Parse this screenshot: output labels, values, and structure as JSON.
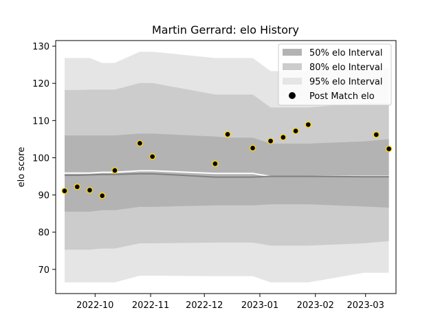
{
  "chart_data": {
    "type": "line",
    "title": "Martin Gerrard: elo History",
    "xlabel": "",
    "ylabel": "elo score",
    "ylim": [
      63.5,
      131.5
    ],
    "xlim": [
      "2022-09-09",
      "2023-03-18"
    ],
    "grid": false,
    "legend_position": "top-right",
    "y_ticks": [
      70,
      80,
      90,
      100,
      110,
      120,
      130
    ],
    "x_ticks": [
      "2022-10",
      "2022-11",
      "2022-12",
      "2023-01",
      "2023-02",
      "2023-03"
    ],
    "x_tick_dates": [
      "2022-10-01",
      "2022-11-01",
      "2022-12-01",
      "2023-01-01",
      "2023-02-01",
      "2023-03-01"
    ],
    "colors": {
      "band50": "#b3b3b3",
      "band80": "#cccccc",
      "band95": "#e5e5e5",
      "mean_line": "#808080",
      "median_line": "#ffffff",
      "point_fill": "#000000",
      "point_edge": "#ffd700"
    },
    "bands": {
      "dates": [
        "2022-09-14",
        "2022-09-21",
        "2022-09-28",
        "2022-10-05",
        "2022-10-12",
        "2022-10-26",
        "2022-11-02",
        "2022-12-07",
        "2022-12-14",
        "2022-12-28",
        "2023-01-07",
        "2023-01-28",
        "2023-02-28",
        "2023-03-14"
      ],
      "p95_upper": [
        126.8,
        126.8,
        126.8,
        125.5,
        125.5,
        128.5,
        128.5,
        126.8,
        126.8,
        126.8,
        123.3,
        123.3,
        124.0,
        124.0
      ],
      "p80_upper": [
        118.2,
        118.2,
        118.3,
        118.3,
        118.3,
        120.1,
        120.1,
        117.0,
        117.0,
        117.0,
        113.5,
        113.5,
        114.7,
        114.7
      ],
      "p50_upper": [
        106.0,
        106.0,
        106.0,
        106.0,
        106.0,
        106.5,
        106.5,
        105.7,
        105.4,
        105.4,
        103.8,
        103.8,
        104.4,
        105.0
      ],
      "p50_lower": [
        85.5,
        85.5,
        85.5,
        85.9,
        85.9,
        86.8,
        86.8,
        87.2,
        87.2,
        87.2,
        87.5,
        87.5,
        86.9,
        86.6
      ],
      "p80_lower": [
        75.3,
        75.3,
        75.3,
        75.6,
        75.6,
        77.0,
        77.0,
        77.2,
        77.2,
        77.2,
        76.4,
        76.4,
        77.0,
        77.6
      ],
      "p95_lower": [
        66.5,
        66.5,
        66.5,
        66.5,
        66.5,
        68.3,
        68.3,
        68.2,
        68.2,
        68.2,
        66.5,
        66.5,
        69.1,
        69.1
      ],
      "mean": [
        95.3,
        95.3,
        95.4,
        95.5,
        95.5,
        95.7,
        95.7,
        94.8,
        94.8,
        94.8,
        95.0,
        95.0,
        94.9,
        94.9
      ],
      "median": [
        95.9,
        95.9,
        95.9,
        96.1,
        96.1,
        96.5,
        96.5,
        95.8,
        95.8,
        95.8,
        95.0,
        95.0,
        95.0,
        95.0
      ]
    },
    "series": [
      {
        "name": "Post Match elo",
        "x": [
          "2022-09-14",
          "2022-09-21",
          "2022-09-28",
          "2022-10-05",
          "2022-10-12",
          "2022-10-26",
          "2022-11-02",
          "2022-12-07",
          "2022-12-14",
          "2022-12-28",
          "2023-01-07",
          "2023-01-14",
          "2023-01-21",
          "2023-01-28",
          "2023-03-07",
          "2023-03-14"
        ],
        "y": [
          91.1,
          92.2,
          91.3,
          89.8,
          96.6,
          103.9,
          100.3,
          98.4,
          106.3,
          102.6,
          104.5,
          105.5,
          107.2,
          108.9,
          106.2,
          102.4
        ]
      }
    ],
    "legend": [
      {
        "label": "50% elo Interval",
        "kind": "band50"
      },
      {
        "label": "80% elo Interval",
        "kind": "band80"
      },
      {
        "label": "95% elo Interval",
        "kind": "band95"
      },
      {
        "label": "Post Match elo",
        "kind": "point"
      }
    ]
  }
}
